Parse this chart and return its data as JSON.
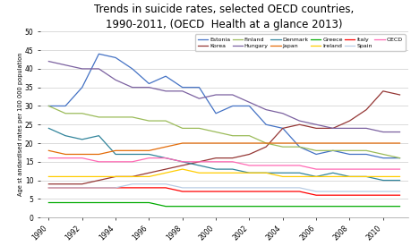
{
  "title": "Trends in suicide rates, selected OECD countries,\n1990-2011, (OECD  Health at a glance 2013)",
  "ylabel": "Age st andardised rates per 100 000 population",
  "years": [
    1990,
    1991,
    1992,
    1993,
    1994,
    1995,
    1996,
    1997,
    1998,
    1999,
    2000,
    2001,
    2002,
    2003,
    2004,
    2005,
    2006,
    2007,
    2008,
    2009,
    2010,
    2011
  ],
  "series": [
    {
      "name": "Estonia",
      "color": "#4472C4",
      "data": [
        30,
        30,
        35,
        44,
        43,
        40,
        36,
        38,
        35,
        35,
        28,
        30,
        30,
        25,
        24,
        19,
        17,
        18,
        17,
        17,
        16,
        16
      ]
    },
    {
      "name": "Korea",
      "color": "#953735",
      "data": [
        9,
        9,
        9,
        10,
        11,
        11,
        12,
        13,
        14,
        15,
        16,
        16,
        17,
        19,
        24,
        25,
        24,
        24,
        26,
        29,
        34,
        33
      ]
    },
    {
      "name": "Finland",
      "color": "#9BBB59",
      "data": [
        30,
        28,
        28,
        27,
        27,
        27,
        26,
        26,
        24,
        24,
        23,
        22,
        22,
        20,
        19,
        19,
        18,
        18,
        18,
        18,
        17,
        16
      ]
    },
    {
      "name": "Hungary",
      "color": "#7B61A0",
      "data": [
        42,
        41,
        40,
        40,
        37,
        35,
        35,
        34,
        34,
        32,
        33,
        33,
        31,
        29,
        28,
        26,
        25,
        24,
        24,
        24,
        23,
        23
      ]
    },
    {
      "name": "Denmark",
      "color": "#31849B",
      "data": [
        24,
        22,
        21,
        22,
        17,
        17,
        17,
        16,
        15,
        14,
        13,
        13,
        12,
        12,
        12,
        12,
        11,
        12,
        11,
        11,
        10,
        10
      ]
    },
    {
      "name": "Japan",
      "color": "#E36C09",
      "data": [
        18,
        17,
        17,
        17,
        18,
        18,
        18,
        19,
        20,
        20,
        20,
        20,
        20,
        20,
        20,
        20,
        20,
        20,
        20,
        20,
        20,
        20
      ]
    },
    {
      "name": "Greece",
      "color": "#00AA00",
      "data": [
        4,
        4,
        4,
        4,
        4,
        4,
        4,
        3,
        3,
        3,
        3,
        3,
        3,
        3,
        3,
        3,
        3,
        3,
        3,
        3,
        3,
        3
      ]
    },
    {
      "name": "Ireland",
      "color": "#FFCC00",
      "data": [
        11,
        11,
        11,
        11,
        11,
        11,
        11,
        12,
        13,
        12,
        12,
        12,
        12,
        12,
        11,
        11,
        11,
        11,
        11,
        11,
        11,
        11
      ]
    },
    {
      "name": "Italy",
      "color": "#FF0000",
      "data": [
        8,
        8,
        8,
        8,
        8,
        8,
        8,
        8,
        7,
        7,
        7,
        7,
        7,
        7,
        7,
        7,
        6,
        6,
        6,
        6,
        6,
        6
      ]
    },
    {
      "name": "Spain",
      "color": "#B8CCE4",
      "data": [
        8,
        8,
        8,
        8,
        8,
        9,
        9,
        9,
        8,
        8,
        8,
        8,
        8,
        8,
        8,
        8,
        7,
        7,
        7,
        7,
        7,
        7
      ]
    },
    {
      "name": "OECD",
      "color": "#FF69B4",
      "data": [
        16,
        16,
        16,
        15,
        15,
        15,
        16,
        16,
        15,
        15,
        15,
        15,
        14,
        14,
        14,
        14,
        13,
        13,
        13,
        13,
        13,
        13
      ]
    }
  ],
  "ylim": [
    0,
    50
  ],
  "yticks": [
    0,
    5,
    10,
    15,
    20,
    25,
    30,
    35,
    40,
    45,
    50
  ],
  "xticks": [
    1990,
    1992,
    1994,
    1996,
    1998,
    2000,
    2002,
    2004,
    2006,
    2008,
    2010
  ],
  "bg_color": "#FFFFFF",
  "title_fontsize": 8.5,
  "tick_fontsize": 5.5,
  "ylabel_fontsize": 4.8
}
